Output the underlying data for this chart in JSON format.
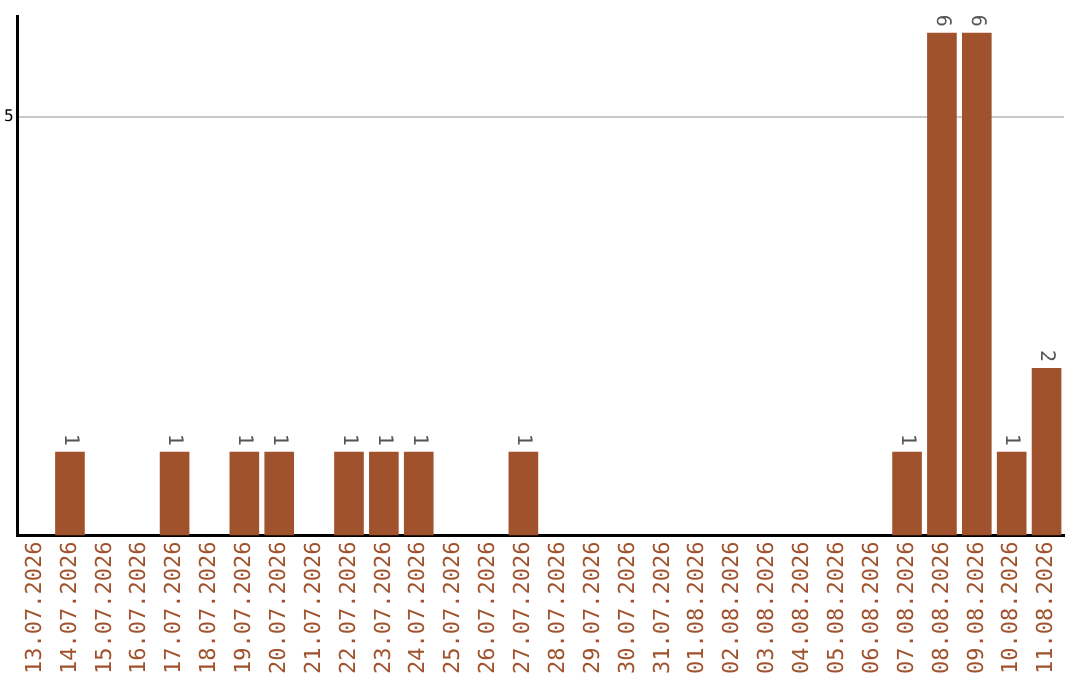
{
  "chart_data": {
    "type": "bar",
    "categories": [
      "13.07.2026",
      "14.07.2026",
      "15.07.2026",
      "16.07.2026",
      "17.07.2026",
      "18.07.2026",
      "19.07.2026",
      "20.07.2026",
      "21.07.2026",
      "22.07.2026",
      "23.07.2026",
      "24.07.2026",
      "25.07.2026",
      "26.07.2026",
      "27.07.2026",
      "28.07.2026",
      "29.07.2026",
      "30.07.2026",
      "31.07.2026",
      "01.08.2026",
      "02.08.2026",
      "03.08.2026",
      "04.08.2026",
      "05.08.2026",
      "06.08.2026",
      "07.08.2026",
      "08.08.2026",
      "09.08.2026",
      "10.08.2026",
      "11.08.2026"
    ],
    "values": [
      0,
      1,
      0,
      0,
      1,
      0,
      1,
      1,
      0,
      1,
      1,
      1,
      0,
      0,
      1,
      0,
      0,
      0,
      0,
      0,
      0,
      0,
      0,
      0,
      0,
      1,
      6,
      6,
      1,
      2
    ],
    "value_labels": [
      null,
      "1",
      null,
      null,
      "1",
      null,
      "1",
      "1",
      null,
      "1",
      "1",
      "1",
      null,
      null,
      "1",
      null,
      null,
      null,
      null,
      null,
      null,
      null,
      null,
      null,
      null,
      "1",
      "6",
      "6",
      "1",
      "2"
    ],
    "color": "#a0522d",
    "ylim": [
      0,
      6.2
    ],
    "yticks": [
      5
    ],
    "grid": "y",
    "legend": false
  }
}
